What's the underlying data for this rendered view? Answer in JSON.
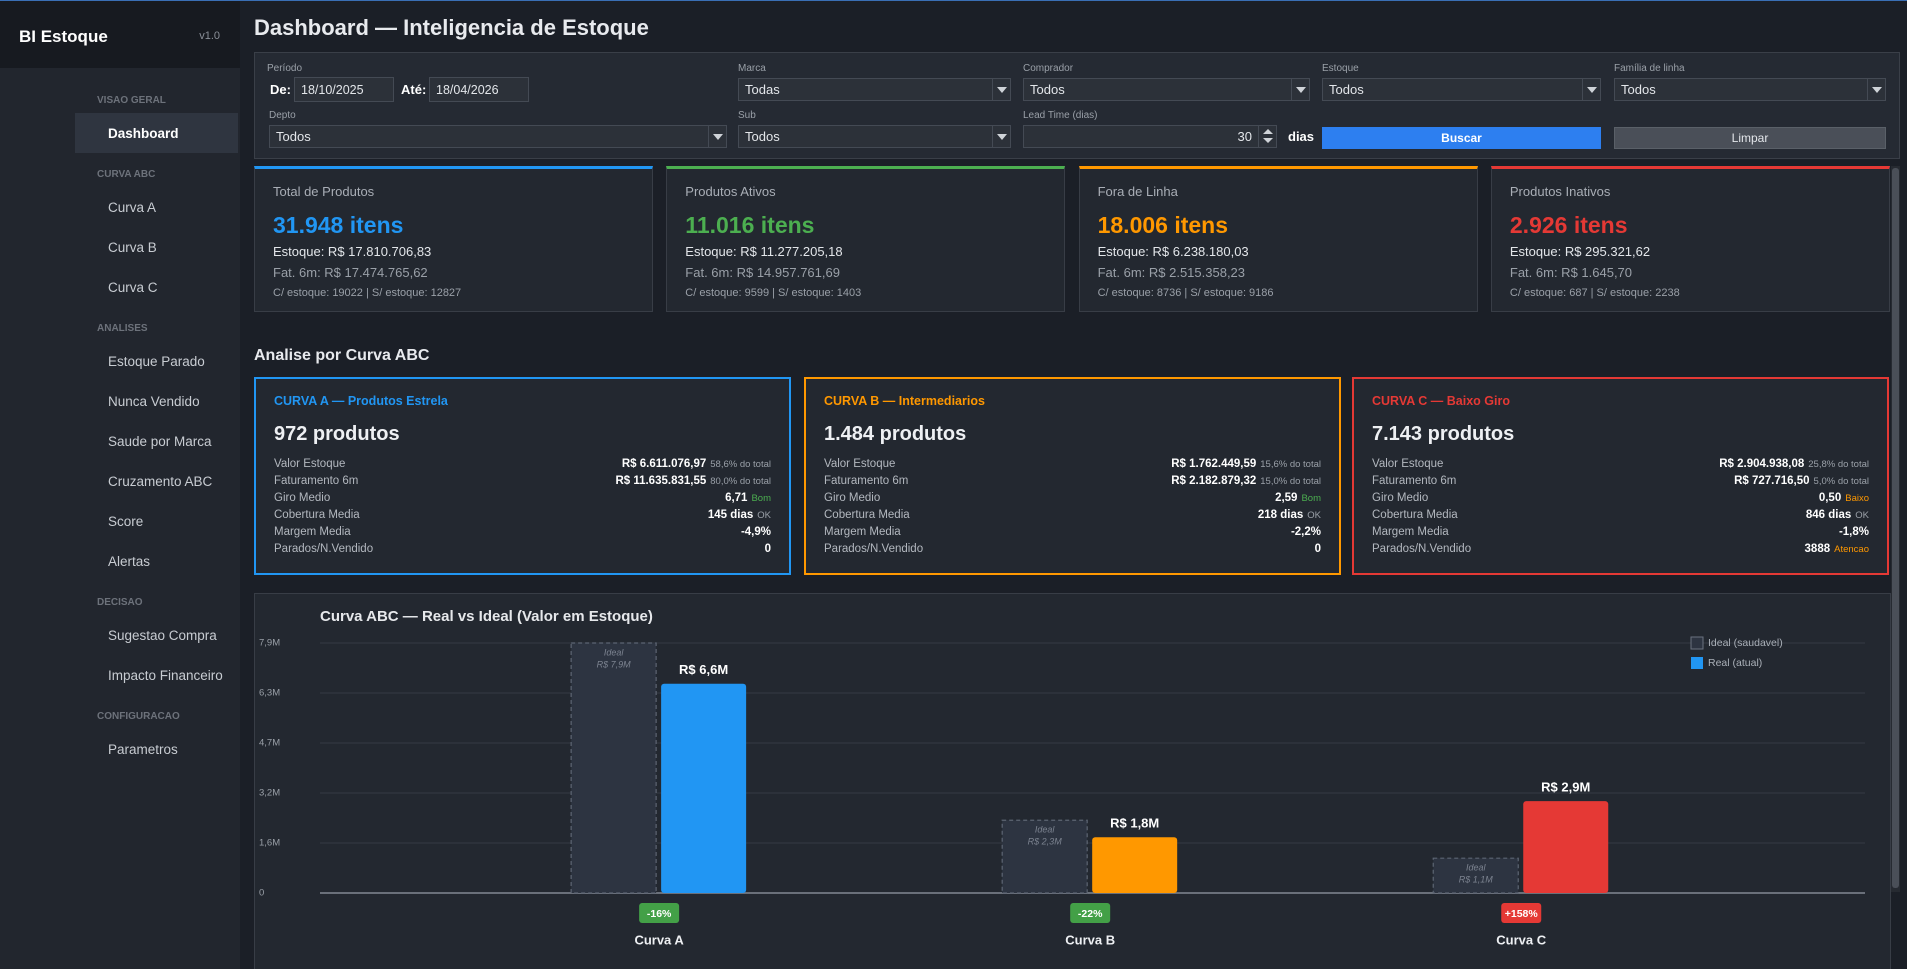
{
  "sidebar": {
    "title": "BI Estoque",
    "version": "v1.0",
    "active": "Dashboard",
    "sections": [
      {
        "label": "VISAO GERAL",
        "items": [
          "Dashboard"
        ]
      },
      {
        "label": "CURVA ABC",
        "items": [
          "Curva A",
          "Curva B",
          "Curva C"
        ]
      },
      {
        "label": "ANALISES",
        "items": [
          "Estoque Parado",
          "Nunca Vendido",
          "Saude por Marca",
          "Cruzamento ABC",
          "Score",
          "Alertas"
        ]
      },
      {
        "label": "DECISAO",
        "items": [
          "Sugestao Compra",
          "Impacto Financeiro"
        ]
      },
      {
        "label": "CONFIGURACAO",
        "items": [
          "Parametros"
        ]
      }
    ]
  },
  "header": {
    "title": "Dashboard — Inteligencia de Estoque"
  },
  "filters": {
    "periodo_label": "Período",
    "de_label": "De:",
    "de_value": "18/10/2025",
    "ate_label": "Até:",
    "ate_value": "18/04/2026",
    "selects": [
      {
        "label": "Marca",
        "value": "Todas"
      },
      {
        "label": "Comprador",
        "value": "Todos"
      },
      {
        "label": "Estoque",
        "value": "Todos"
      },
      {
        "label": "Família de linha",
        "value": "Todos"
      },
      {
        "label": "Depto",
        "value": "Todos"
      },
      {
        "label": "Sub",
        "value": "Todos"
      }
    ],
    "lead_time": {
      "label": "Lead Time (dias)",
      "value": 30,
      "unit": "dias"
    },
    "buttons": [
      "Buscar",
      "Limpar"
    ]
  },
  "kpi_cards": [
    {
      "label": "Total de Produtos",
      "value": "31.948 itens",
      "estoque": "Estoque: R$ 17.810.706,83",
      "fat": "Fat. 6m: R$ 17.474.765,62",
      "split": "C/ estoque: 19022 | S/ estoque: 12827",
      "color": "#2196f3"
    },
    {
      "label": "Produtos Ativos",
      "value": "11.016 itens",
      "estoque": "Estoque: R$ 11.277.205,18",
      "fat": "Fat. 6m: R$ 14.957.761,69",
      "split": "C/ estoque: 9599 | S/ estoque: 1403",
      "color": "#4caf50"
    },
    {
      "label": "Fora de Linha",
      "value": "18.006 itens",
      "estoque": "Estoque: R$ 6.238.180,03",
      "fat": "Fat. 6m: R$ 2.515.358,23",
      "split": "C/ estoque: 8736 | S/ estoque: 9186",
      "color": "#ff9800"
    },
    {
      "label": "Produtos Inativos",
      "value": "2.926 itens",
      "estoque": "Estoque: R$ 295.321,62",
      "fat": "Fat. 6m: R$ 1.645,70",
      "split": "C/ estoque: 687 | S/ estoque: 2238",
      "color": "#e53935"
    }
  ],
  "abc_section_title": "Analise por Curva ABC",
  "abc_cards": [
    {
      "title": "CURVA A — Produtos Estrela",
      "count": "972 produtos",
      "color": "#2196f3",
      "rows": [
        {
          "label": "Valor Estoque",
          "value": "R$ 6.611.076,97",
          "note": "58,6% do total"
        },
        {
          "label": "Faturamento 6m",
          "value": "R$ 11.635.831,55",
          "note": "80,0% do total"
        },
        {
          "label": "Giro Medio",
          "value": "6,71",
          "note": "Bom",
          "note_color": "#4caf50"
        },
        {
          "label": "Cobertura Media",
          "value": "145 dias",
          "note": "OK"
        },
        {
          "label": "Margem Media",
          "value": "-4,9%"
        },
        {
          "label": "Parados/N.Vendido",
          "value": "0"
        }
      ]
    },
    {
      "title": "CURVA B — Intermediarios",
      "count": "1.484 produtos",
      "color": "#ff9800",
      "rows": [
        {
          "label": "Valor Estoque",
          "value": "R$ 1.762.449,59",
          "note": "15,6% do total"
        },
        {
          "label": "Faturamento 6m",
          "value": "R$ 2.182.879,32",
          "note": "15,0% do total"
        },
        {
          "label": "Giro Medio",
          "value": "2,59",
          "note": "Bom",
          "note_color": "#4caf50"
        },
        {
          "label": "Cobertura Media",
          "value": "218 dias",
          "note": "OK"
        },
        {
          "label": "Margem Media",
          "value": "-2,2%"
        },
        {
          "label": "Parados/N.Vendido",
          "value": "0"
        }
      ]
    },
    {
      "title": "CURVA C — Baixo Giro",
      "count": "7.143 produtos",
      "color": "#e53935",
      "rows": [
        {
          "label": "Valor Estoque",
          "value": "R$ 2.904.938,08",
          "note": "25,8% do total"
        },
        {
          "label": "Faturamento 6m",
          "value": "R$ 727.716,50",
          "note": "5,0% do total"
        },
        {
          "label": "Giro Medio",
          "value": "0,50",
          "note": "Baixo",
          "note_color": "#ff9800"
        },
        {
          "label": "Cobertura Media",
          "value": "846 dias",
          "note": "OK"
        },
        {
          "label": "Margem Media",
          "value": "-1,8%"
        },
        {
          "label": "Parados/N.Vendido",
          "value": "3888",
          "note": "Atencao",
          "note_color": "#ff9800"
        }
      ]
    }
  ],
  "chart_data": {
    "type": "bar",
    "title": "Curva ABC — Real vs Ideal (Valor em Estoque)",
    "categories": [
      "Curva A",
      "Curva B",
      "Curva C"
    ],
    "series": [
      {
        "name": "Ideal (saudavel)",
        "color": "#2d3441",
        "tag": "Ideal",
        "values": [
          7900000,
          2300000,
          1100000
        ],
        "value_labels": [
          "R$ 7,9M",
          "R$ 2,3M",
          "R$ 1,1M"
        ]
      },
      {
        "name": "Real (atual)",
        "color": "#2196f3",
        "bar_colors": [
          "#2196f3",
          "#ff9800",
          "#e53935"
        ],
        "values": [
          6611076.97,
          1762449.59,
          2904938.08
        ],
        "value_labels": [
          "R$ 6,6M",
          "R$ 1,8M",
          "R$ 2,9M"
        ]
      }
    ],
    "deviation_labels": [
      "-16%",
      "-22%",
      "+158%"
    ],
    "deviation_colors": [
      "#43a047",
      "#43a047",
      "#e53935"
    ],
    "ylim": [
      0,
      7900000
    ],
    "yticks": [
      0,
      {
        "value": 1580000,
        "label": "1,6M"
      },
      {
        "value": 3160000,
        "label": "3,2M"
      },
      {
        "value": 4740000,
        "label": "4,7M"
      },
      {
        "value": 6320000,
        "label": "6,3M"
      },
      {
        "value": 7900000,
        "label": "7,9M"
      }
    ],
    "grid": true,
    "legend": "top-right"
  }
}
